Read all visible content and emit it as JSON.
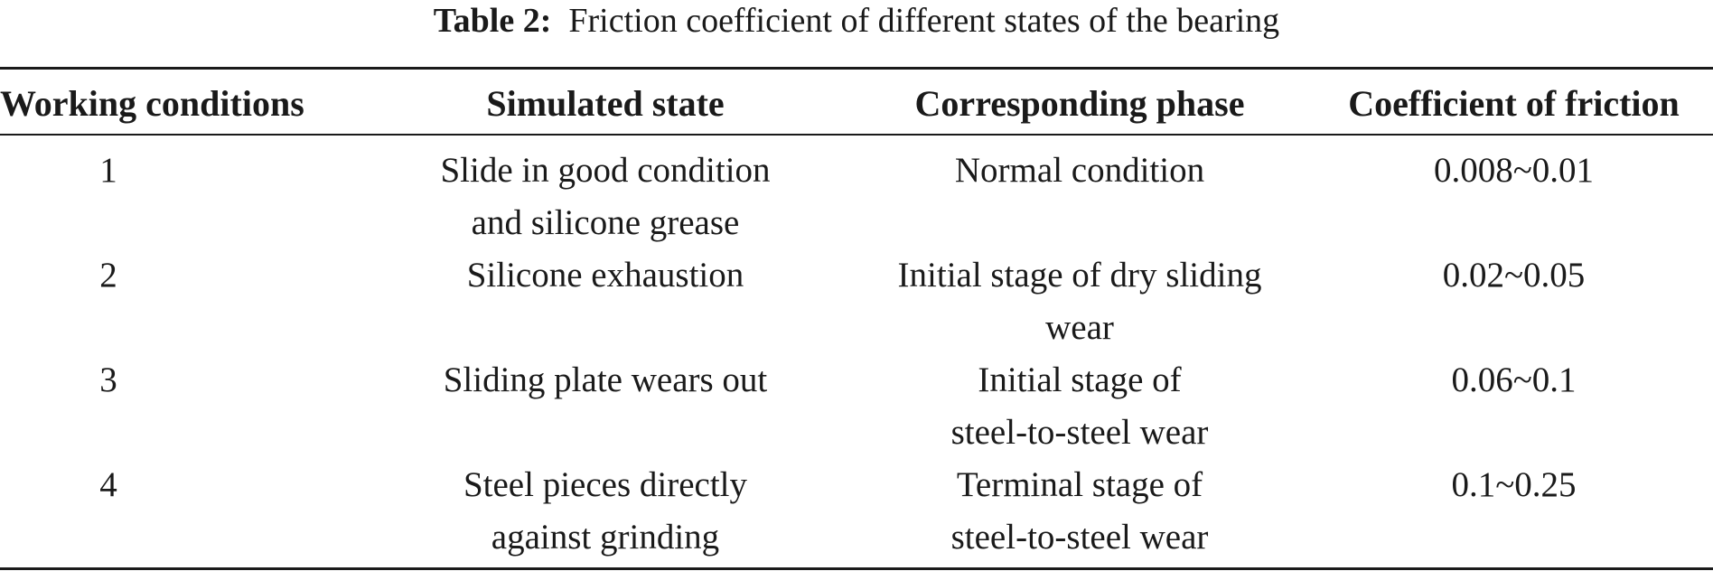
{
  "caption": {
    "label": "Table 2:",
    "text": "Friction coefficient of different states of the bearing"
  },
  "table": {
    "headers": [
      "Working conditions",
      "Simulated state",
      "Corresponding phase",
      "Coefficient of friction"
    ],
    "rows": [
      {
        "condition": "1",
        "state": [
          "Slide in good condition",
          "and silicone grease"
        ],
        "phase": [
          "Normal condition",
          ""
        ],
        "coefficient": "0.008~0.01"
      },
      {
        "condition": "2",
        "state": [
          "Silicone exhaustion",
          ""
        ],
        "phase": [
          "Initial stage of dry sliding",
          "wear"
        ],
        "coefficient": "0.02~0.05"
      },
      {
        "condition": "3",
        "state": [
          "Sliding plate wears out",
          ""
        ],
        "phase": [
          "Initial stage of",
          "steel-to-steel wear"
        ],
        "coefficient": "0.06~0.1"
      },
      {
        "condition": "4",
        "state": [
          "Steel pieces directly",
          "against grinding"
        ],
        "phase": [
          "Terminal stage of",
          "steel-to-steel wear"
        ],
        "coefficient": "0.1~0.25"
      }
    ]
  }
}
